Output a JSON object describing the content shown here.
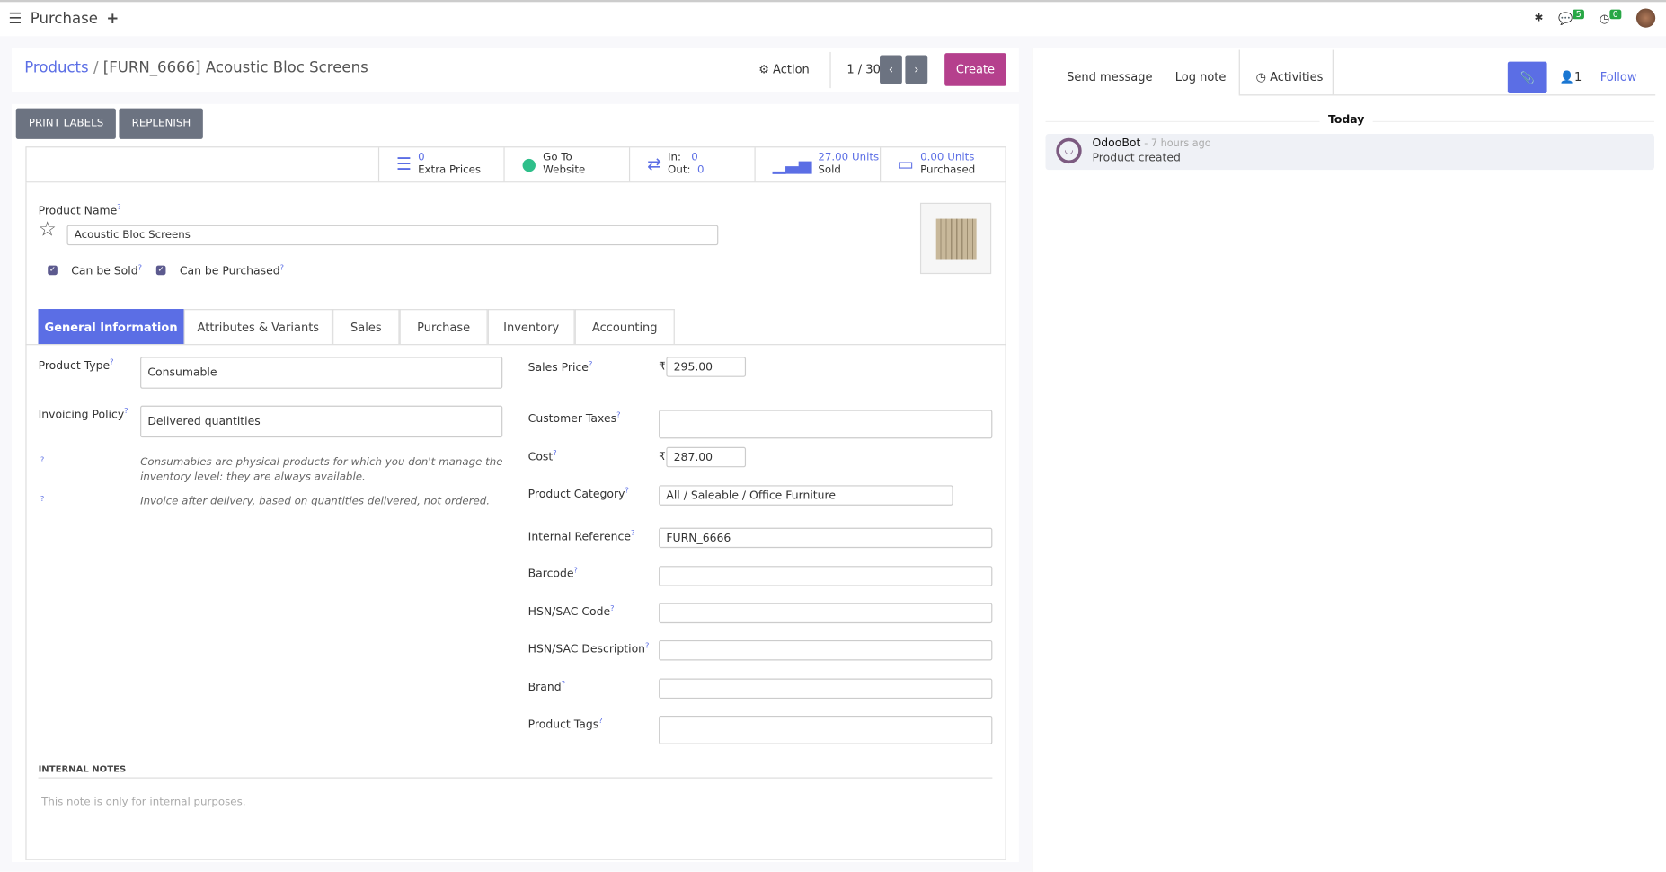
{
  "app": {
    "title": "Purchase",
    "chat_count": "5",
    "activity_count": "0"
  },
  "breadcrumb": {
    "parent": "Products",
    "separator": "/",
    "current": "[FURN_6666] Acoustic Bloc Screens"
  },
  "toolbar": {
    "action": "Action",
    "pager": "1 / 30",
    "create": "Create",
    "print_labels": "PRINT LABELS",
    "replenish": "REPLENISH"
  },
  "stats": {
    "extra_prices_value": "0",
    "extra_prices_label": "Extra Prices",
    "website_line1": "Go To",
    "website_line2": "Website",
    "in_label": "In:",
    "in_value": "0",
    "out_label": "Out:",
    "out_value": "0",
    "sold_value": "27.00 Units",
    "sold_label": "Sold",
    "purchased_value": "0.00 Units",
    "purchased_label": "Purchased"
  },
  "product": {
    "name_label": "Product Name",
    "name": "Acoustic Bloc Screens",
    "can_be_sold": "Can be Sold",
    "can_be_purchased": "Can be Purchased",
    "sold_checked": true,
    "purchased_checked": true
  },
  "tabs": [
    "General Information",
    "Attributes & Variants",
    "Sales",
    "Purchase",
    "Inventory",
    "Accounting"
  ],
  "left_fields": {
    "product_type_label": "Product Type",
    "product_type": "Consumable",
    "invoicing_label": "Invoicing Policy",
    "invoicing": "Delivered quantities",
    "help1": "Consumables are physical products for which you don't manage the inventory level: they are always available.",
    "help2": "Invoice after delivery, based on quantities delivered, not ordered."
  },
  "right_fields": {
    "currency": "₹",
    "sales_price_label": "Sales Price",
    "sales_price": "295.00",
    "customer_taxes_label": "Customer Taxes",
    "cost_label": "Cost",
    "cost": "287.00",
    "category_label": "Product Category",
    "category": "All / Saleable / Office Furniture",
    "internal_ref_label": "Internal Reference",
    "internal_ref": "FURN_6666",
    "barcode_label": "Barcode",
    "hsn_code_label": "HSN/SAC Code",
    "hsn_desc_label": "HSN/SAC Description",
    "brand_label": "Brand",
    "tags_label": "Product Tags"
  },
  "notes": {
    "title": "INTERNAL NOTES",
    "placeholder": "This note is only for internal purposes."
  },
  "chatter": {
    "send_message": "Send message",
    "log_note": "Log note",
    "activities": "Activities",
    "followers": "1",
    "follow": "Follow",
    "date": "Today",
    "author": "OdooBot",
    "time": "- 7 hours ago",
    "body": "Product created"
  },
  "colors": {
    "primary": "#5b6ee5",
    "create": "#b5408d",
    "secondary": "#6c7381"
  }
}
